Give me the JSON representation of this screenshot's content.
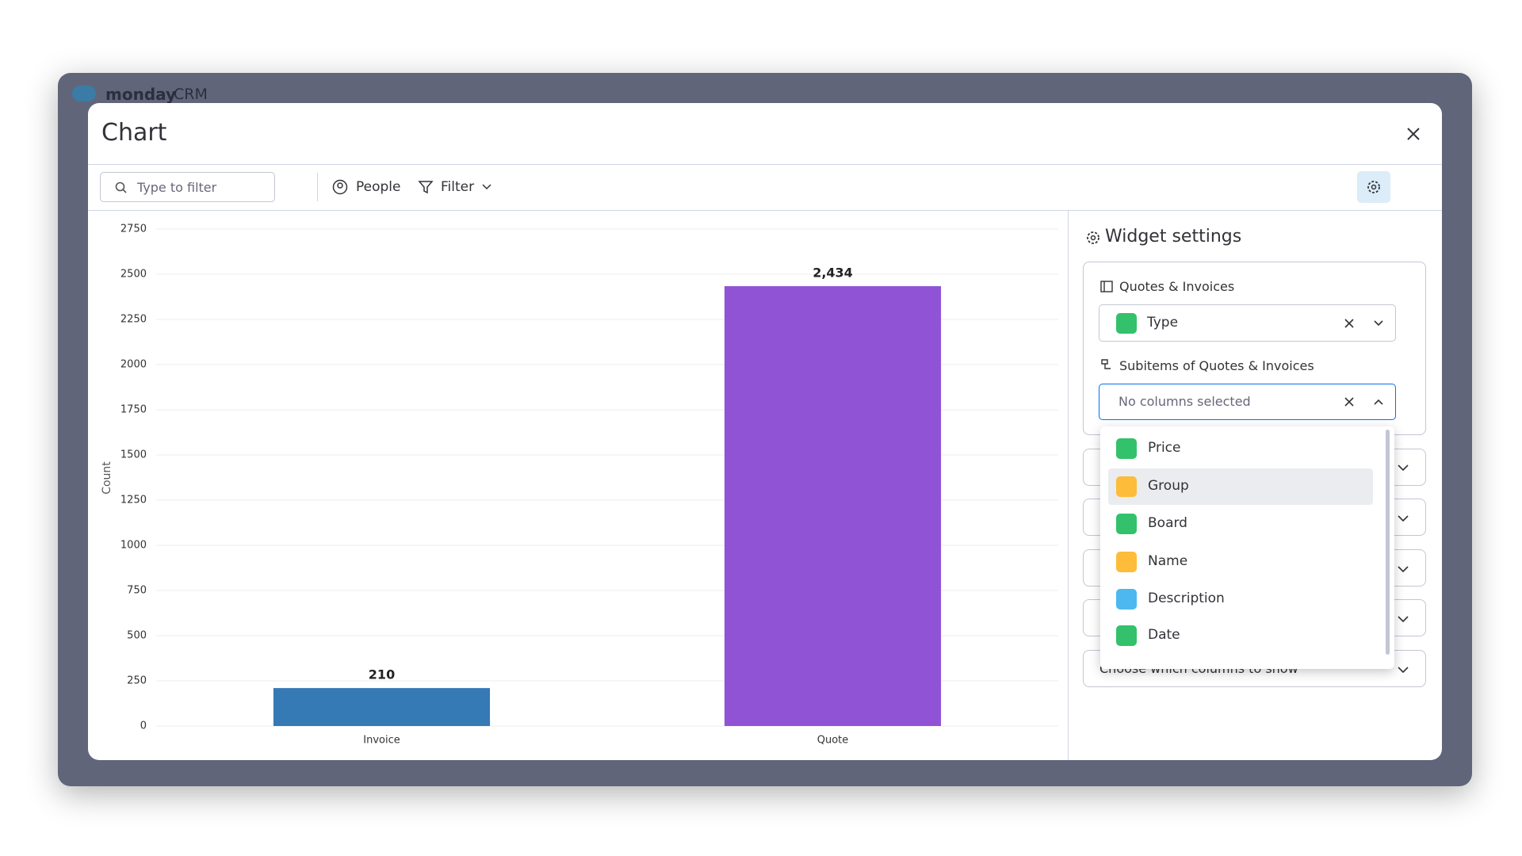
{
  "app": {
    "brand": "monday",
    "product": "CRM"
  },
  "modal": {
    "title": "Chart"
  },
  "toolbar": {
    "search_placeholder": "Type to filter",
    "people": "People",
    "filter": "Filter"
  },
  "chart_data": {
    "type": "bar",
    "y_label": "Count",
    "categories": [
      "Invoice",
      "Quote"
    ],
    "values": [
      210,
      2434
    ],
    "value_labels": [
      "210",
      "2,434"
    ],
    "colors": [
      "#3579b5",
      "#9153d6"
    ],
    "ylim": [
      0,
      2750
    ],
    "yticks": [
      0,
      250,
      500,
      750,
      1000,
      1250,
      1500,
      1750,
      2000,
      2250,
      2500,
      2750
    ],
    "grid": true
  },
  "settings": {
    "title": "Widget settings",
    "board_label": "Quotes & Invoices",
    "board_value": "Type",
    "subitems_label": "Subitems of Quotes & Invoices",
    "subitems_placeholder": "No columns selected",
    "options": [
      "Price",
      "Group",
      "Board",
      "Name",
      "Description",
      "Date"
    ],
    "footer_select": "Choose which columns to show"
  }
}
